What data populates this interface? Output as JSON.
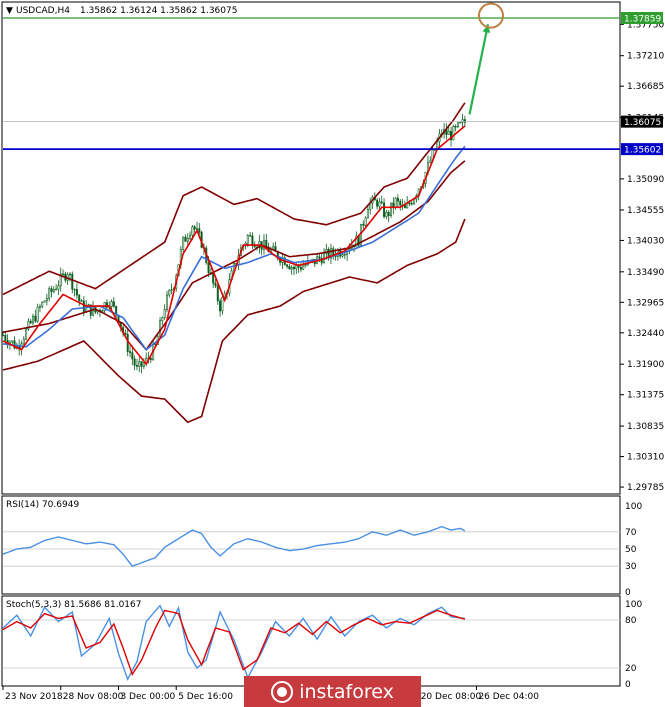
{
  "header": {
    "symbol": "USDCAD,H4",
    "ohlc": "1.35862 1.36124 1.35862 1.36075",
    "rsi_label": "RSI(14) 70.6949",
    "stoch_label": "Stoch(5,3,3) 81.5686 81.0167"
  },
  "watermark": {
    "brand": "instaforex"
  },
  "colors": {
    "candle": "#0b5d1e",
    "bb_outer": "#800000",
    "ma_fast": "#e00000",
    "ma_slow": "#3a70d8",
    "level_green": "#2f9e2f",
    "level_blue": "#0000c8",
    "current_price_tag": "#000000",
    "rsi_line": "#4a90e2",
    "stoch_main": "#4a90e2",
    "stoch_signal": "#e00000",
    "arrow": "#22b34a",
    "target_circle": "#c08040",
    "grid": "#c8c8c8"
  },
  "chart_data": [
    {
      "type": "candlestick",
      "panel": "price",
      "ylim": [
        1.297,
        1.381
      ],
      "yticks": [
        "1.37750",
        "1.37210",
        "1.36685",
        "1.36145",
        "1.35090",
        "1.34555",
        "1.34030",
        "1.33490",
        "1.32965",
        "1.32440",
        "1.31900",
        "1.31375",
        "1.30835",
        "1.30310",
        "1.29785"
      ],
      "xticks": [
        "23 Nov 2018",
        "28 Nov 08:00",
        "3 Dec 00:00",
        "5 Dec 16:00",
        "20 Dec 08:00",
        "26 Dec 04:00"
      ],
      "xtick_index": [
        0,
        25,
        50,
        75,
        180,
        205
      ],
      "bar_count": 210,
      "levels": [
        {
          "name": "resistance",
          "value": 1.37859,
          "label": "1.37859",
          "color": "#2f9e2f"
        },
        {
          "name": "support",
          "value": 1.35602,
          "label": "1.35602",
          "color": "#0000c8"
        },
        {
          "name": "current-price",
          "value": 1.36075,
          "label": "1.36075",
          "color": "#000000"
        }
      ],
      "close_path": [
        [
          0,
          1.324
        ],
        [
          6,
          1.322
        ],
        [
          12,
          1.326
        ],
        [
          18,
          1.33
        ],
        [
          24,
          1.333
        ],
        [
          28,
          1.335
        ],
        [
          34,
          1.329
        ],
        [
          40,
          1.328
        ],
        [
          46,
          1.33
        ],
        [
          50,
          1.327
        ],
        [
          54,
          1.322
        ],
        [
          58,
          1.318
        ],
        [
          62,
          1.3195
        ],
        [
          66,
          1.322
        ],
        [
          70,
          1.329
        ],
        [
          74,
          1.333
        ],
        [
          78,
          1.34
        ],
        [
          82,
          1.343
        ],
        [
          86,
          1.34
        ],
        [
          90,
          1.334
        ],
        [
          94,
          1.329
        ],
        [
          98,
          1.333
        ],
        [
          102,
          1.338
        ],
        [
          106,
          1.341
        ],
        [
          110,
          1.34
        ],
        [
          114,
          1.339
        ],
        [
          118,
          1.338
        ],
        [
          122,
          1.337
        ],
        [
          126,
          1.3355
        ],
        [
          130,
          1.336
        ],
        [
          134,
          1.3365
        ],
        [
          138,
          1.3375
        ],
        [
          142,
          1.338
        ],
        [
          146,
          1.3385
        ],
        [
          150,
          1.3395
        ],
        [
          154,
          1.3405
        ],
        [
          158,
          1.3465
        ],
        [
          162,
          1.347
        ],
        [
          166,
          1.3445
        ],
        [
          170,
          1.347
        ],
        [
          174,
          1.3455
        ],
        [
          178,
          1.348
        ],
        [
          182,
          1.351
        ],
        [
          186,
          1.355
        ],
        [
          190,
          1.359
        ],
        [
          194,
          1.3585
        ],
        [
          198,
          1.36
        ],
        [
          200,
          1.3607
        ]
      ],
      "bb_upper": [
        [
          0,
          1.331
        ],
        [
          20,
          1.335
        ],
        [
          40,
          1.332
        ],
        [
          55,
          1.336
        ],
        [
          70,
          1.34
        ],
        [
          78,
          1.348
        ],
        [
          86,
          1.3495
        ],
        [
          100,
          1.3465
        ],
        [
          110,
          1.3475
        ],
        [
          126,
          1.344
        ],
        [
          140,
          1.343
        ],
        [
          155,
          1.345
        ],
        [
          165,
          1.3495
        ],
        [
          175,
          1.351
        ],
        [
          185,
          1.356
        ],
        [
          195,
          1.361
        ],
        [
          200,
          1.364
        ]
      ],
      "bb_lower": [
        [
          0,
          1.318
        ],
        [
          15,
          1.3195
        ],
        [
          35,
          1.323
        ],
        [
          50,
          1.317
        ],
        [
          60,
          1.3135
        ],
        [
          70,
          1.313
        ],
        [
          80,
          1.309
        ],
        [
          86,
          1.31
        ],
        [
          95,
          1.323
        ],
        [
          106,
          1.3275
        ],
        [
          120,
          1.329
        ],
        [
          130,
          1.3315
        ],
        [
          150,
          1.334
        ],
        [
          162,
          1.333
        ],
        [
          175,
          1.336
        ],
        [
          188,
          1.338
        ],
        [
          196,
          1.34
        ],
        [
          200,
          1.344
        ]
      ],
      "bb_middle": [
        [
          0,
          1.3245
        ],
        [
          20,
          1.326
        ],
        [
          40,
          1.3285
        ],
        [
          52,
          1.326
        ],
        [
          62,
          1.3215
        ],
        [
          72,
          1.327
        ],
        [
          82,
          1.333
        ],
        [
          92,
          1.335
        ],
        [
          102,
          1.337
        ],
        [
          112,
          1.3395
        ],
        [
          124,
          1.3375
        ],
        [
          136,
          1.338
        ],
        [
          150,
          1.339
        ],
        [
          160,
          1.341
        ],
        [
          172,
          1.3435
        ],
        [
          184,
          1.347
        ],
        [
          194,
          1.352
        ],
        [
          200,
          1.354
        ]
      ],
      "ma_fast": [
        [
          0,
          1.323
        ],
        [
          8,
          1.3215
        ],
        [
          16,
          1.326
        ],
        [
          26,
          1.331
        ],
        [
          36,
          1.329
        ],
        [
          46,
          1.329
        ],
        [
          54,
          1.323
        ],
        [
          62,
          1.319
        ],
        [
          70,
          1.325
        ],
        [
          78,
          1.338
        ],
        [
          84,
          1.342
        ],
        [
          90,
          1.336
        ],
        [
          96,
          1.33
        ],
        [
          104,
          1.3395
        ],
        [
          112,
          1.3395
        ],
        [
          120,
          1.337
        ],
        [
          128,
          1.336
        ],
        [
          138,
          1.337
        ],
        [
          148,
          1.3385
        ],
        [
          156,
          1.342
        ],
        [
          164,
          1.346
        ],
        [
          172,
          1.346
        ],
        [
          180,
          1.348
        ],
        [
          188,
          1.356
        ],
        [
          194,
          1.358
        ],
        [
          200,
          1.36
        ]
      ],
      "ma_slow": [
        [
          0,
          1.3225
        ],
        [
          10,
          1.322
        ],
        [
          20,
          1.325
        ],
        [
          30,
          1.3285
        ],
        [
          42,
          1.329
        ],
        [
          52,
          1.327
        ],
        [
          62,
          1.3215
        ],
        [
          70,
          1.324
        ],
        [
          78,
          1.332
        ],
        [
          86,
          1.3375
        ],
        [
          96,
          1.3355
        ],
        [
          106,
          1.3365
        ],
        [
          116,
          1.338
        ],
        [
          126,
          1.3365
        ],
        [
          138,
          1.337
        ],
        [
          150,
          1.3385
        ],
        [
          160,
          1.34
        ],
        [
          170,
          1.3425
        ],
        [
          180,
          1.345
        ],
        [
          190,
          1.351
        ],
        [
          196,
          1.3545
        ],
        [
          200,
          1.3565
        ]
      ],
      "forecast_arrow": {
        "from": [
          202,
          1.362
        ],
        "to": [
          210,
          1.3775
        ]
      },
      "target": {
        "index": 210,
        "value": 1.379
      }
    },
    {
      "type": "line",
      "panel": "rsi",
      "name": "RSI(14)",
      "ylim": [
        0,
        100
      ],
      "yticks": [
        100,
        70,
        50,
        30,
        0
      ],
      "levels": [
        70,
        50,
        30
      ],
      "values": [
        [
          0,
          44
        ],
        [
          6,
          50
        ],
        [
          12,
          52
        ],
        [
          18,
          60
        ],
        [
          24,
          64
        ],
        [
          30,
          60
        ],
        [
          36,
          56
        ],
        [
          42,
          58
        ],
        [
          48,
          55
        ],
        [
          52,
          44
        ],
        [
          56,
          30
        ],
        [
          60,
          34
        ],
        [
          66,
          40
        ],
        [
          70,
          52
        ],
        [
          76,
          62
        ],
        [
          82,
          72
        ],
        [
          86,
          68
        ],
        [
          90,
          52
        ],
        [
          94,
          42
        ],
        [
          100,
          56
        ],
        [
          106,
          62
        ],
        [
          112,
          58
        ],
        [
          118,
          52
        ],
        [
          124,
          48
        ],
        [
          130,
          50
        ],
        [
          136,
          54
        ],
        [
          142,
          56
        ],
        [
          148,
          58
        ],
        [
          154,
          62
        ],
        [
          160,
          70
        ],
        [
          166,
          66
        ],
        [
          172,
          72
        ],
        [
          178,
          66
        ],
        [
          184,
          70
        ],
        [
          190,
          76
        ],
        [
          194,
          72
        ],
        [
          198,
          74
        ],
        [
          200,
          71
        ]
      ]
    },
    {
      "type": "line",
      "panel": "stoch",
      "name": "Stoch(5,3,3)",
      "ylim": [
        0,
        100
      ],
      "yticks": [
        100,
        80,
        20,
        0
      ],
      "levels": [
        80,
        20
      ],
      "series": [
        {
          "name": "main",
          "values": [
            [
              0,
              70
            ],
            [
              6,
              86
            ],
            [
              12,
              60
            ],
            [
              18,
              96
            ],
            [
              24,
              78
            ],
            [
              30,
              90
            ],
            [
              34,
              35
            ],
            [
              40,
              50
            ],
            [
              46,
              82
            ],
            [
              50,
              38
            ],
            [
              54,
              6
            ],
            [
              58,
              28
            ],
            [
              62,
              78
            ],
            [
              68,
              98
            ],
            [
              72,
              72
            ],
            [
              76,
              95
            ],
            [
              80,
              40
            ],
            [
              84,
              20
            ],
            [
              88,
              30
            ],
            [
              94,
              90
            ],
            [
              100,
              55
            ],
            [
              106,
              8
            ],
            [
              112,
              40
            ],
            [
              118,
              78
            ],
            [
              124,
              60
            ],
            [
              130,
              82
            ],
            [
              136,
              56
            ],
            [
              142,
              84
            ],
            [
              148,
              60
            ],
            [
              154,
              78
            ],
            [
              160,
              86
            ],
            [
              166,
              70
            ],
            [
              172,
              82
            ],
            [
              178,
              74
            ],
            [
              184,
              88
            ],
            [
              190,
              96
            ],
            [
              194,
              84
            ],
            [
              200,
              82
            ]
          ]
        },
        {
          "name": "signal",
          "values": [
            [
              0,
              68
            ],
            [
              6,
              78
            ],
            [
              12,
              70
            ],
            [
              18,
              88
            ],
            [
              24,
              82
            ],
            [
              30,
              85
            ],
            [
              36,
              45
            ],
            [
              42,
              52
            ],
            [
              48,
              75
            ],
            [
              52,
              45
            ],
            [
              56,
              12
            ],
            [
              60,
              30
            ],
            [
              66,
              70
            ],
            [
              70,
              92
            ],
            [
              76,
              88
            ],
            [
              80,
              55
            ],
            [
              86,
              24
            ],
            [
              92,
              70
            ],
            [
              98,
              65
            ],
            [
              104,
              18
            ],
            [
              110,
              30
            ],
            [
              116,
              70
            ],
            [
              122,
              64
            ],
            [
              128,
              76
            ],
            [
              134,
              62
            ],
            [
              140,
              78
            ],
            [
              146,
              64
            ],
            [
              152,
              74
            ],
            [
              158,
              82
            ],
            [
              164,
              74
            ],
            [
              170,
              78
            ],
            [
              176,
              76
            ],
            [
              182,
              84
            ],
            [
              188,
              92
            ],
            [
              194,
              86
            ],
            [
              200,
              81
            ]
          ]
        }
      ]
    }
  ]
}
